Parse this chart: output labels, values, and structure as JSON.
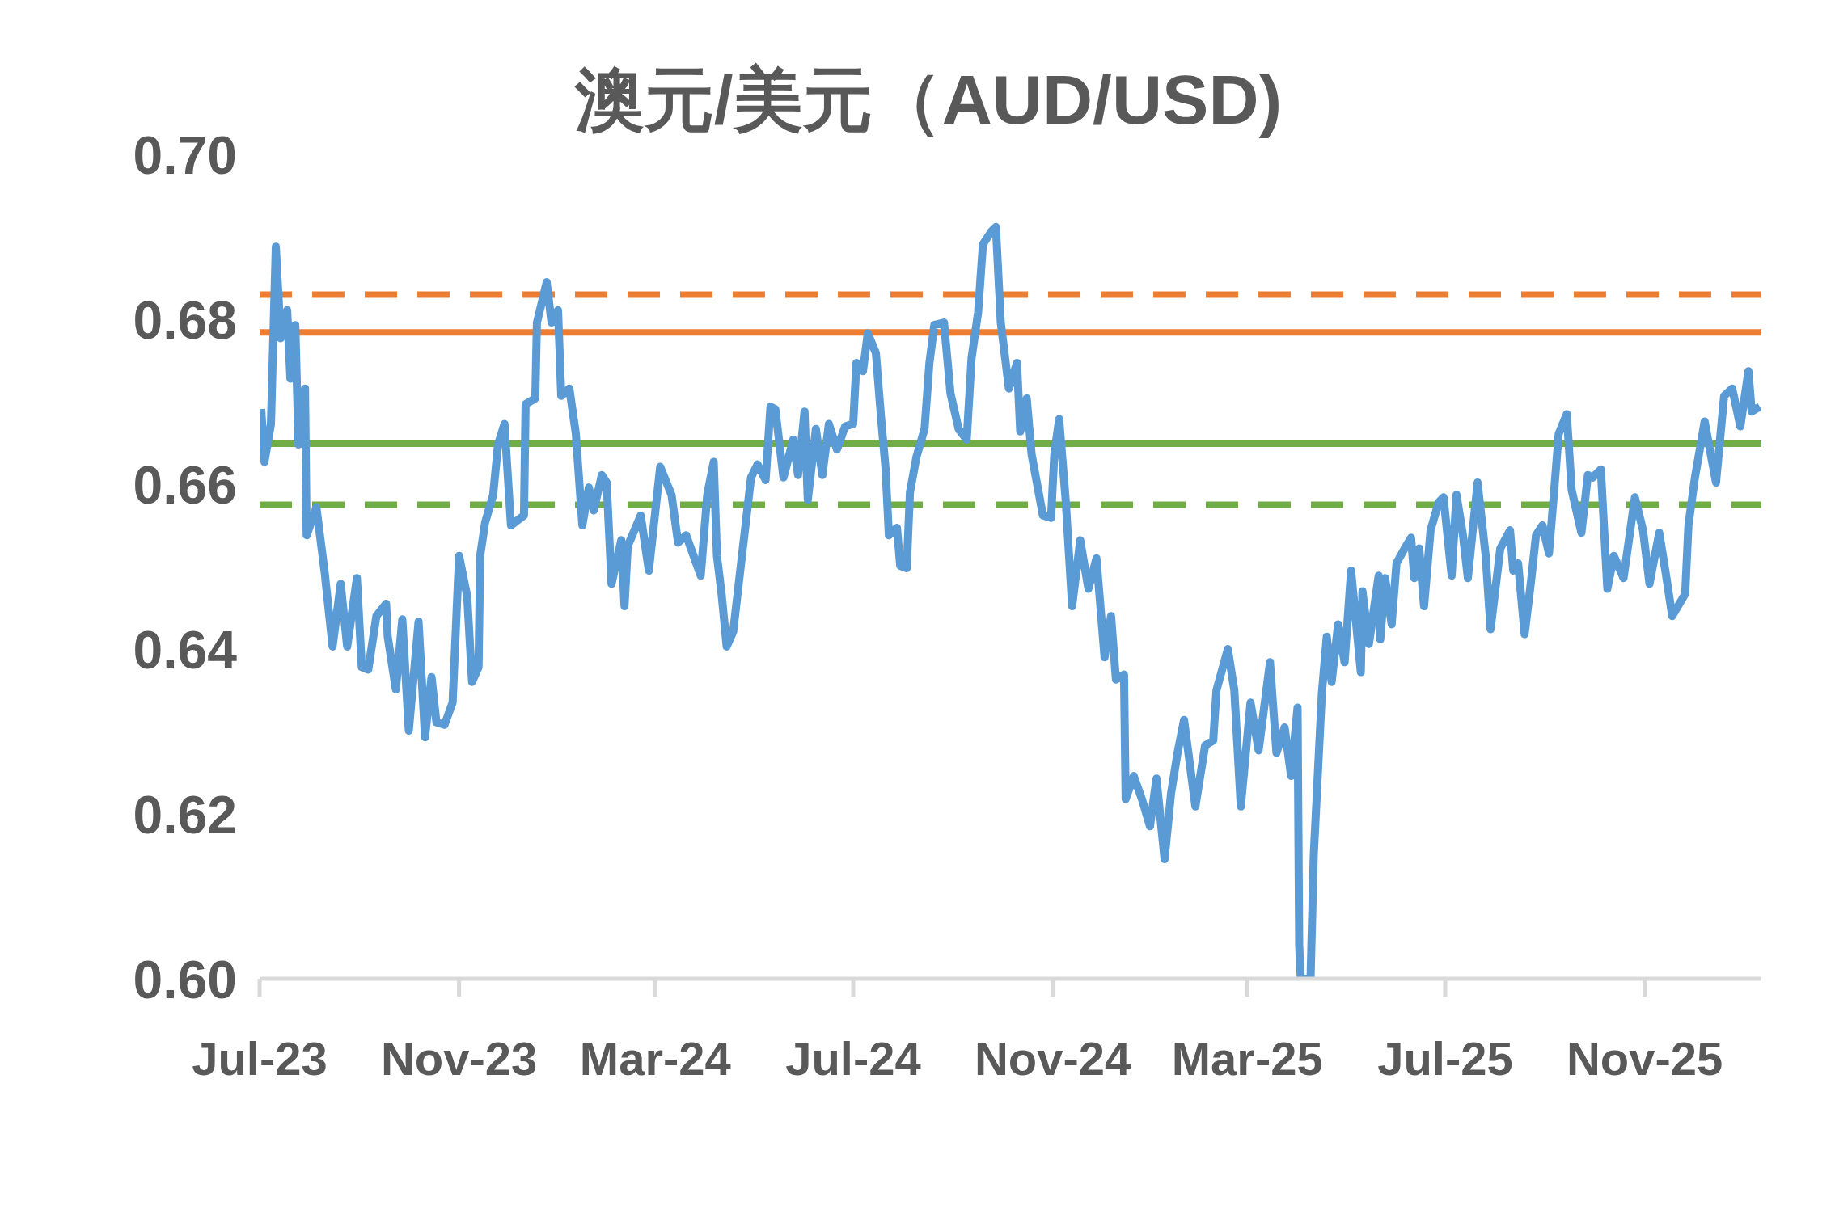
{
  "chart_data": {
    "type": "line",
    "title": "澳元/美元（AUD/USD)",
    "x": [
      "2023-07-02",
      "2023-07-04",
      "2023-07-08",
      "2023-07-11",
      "2023-07-14",
      "2023-07-18",
      "2023-07-20",
      "2023-07-23",
      "2023-07-25",
      "2023-07-29",
      "2023-07-30",
      "2023-08-05",
      "2023-08-10",
      "2023-08-15",
      "2023-08-20",
      "2023-08-24",
      "2023-08-30",
      "2023-09-02",
      "2023-09-06",
      "2023-09-11",
      "2023-09-17",
      "2023-09-18",
      "2023-09-23",
      "2023-09-27",
      "2023-10-01",
      "2023-10-07",
      "2023-10-11",
      "2023-10-15",
      "2023-10-18",
      "2023-10-23",
      "2023-10-28",
      "2023-11-01",
      "2023-11-06",
      "2023-11-09",
      "2023-11-13",
      "2023-11-14",
      "2023-11-17",
      "2023-11-22",
      "2023-11-25",
      "2023-11-29",
      "2023-12-03",
      "2023-12-11",
      "2023-12-12",
      "2023-12-18",
      "2023-12-19",
      "2023-12-25",
      "2023-12-28",
      "2024-01-01",
      "2024-01-03",
      "2024-01-08",
      "2024-01-12",
      "2024-01-16",
      "2024-01-20",
      "2024-01-23",
      "2024-01-28",
      "2024-01-31",
      "2024-02-03",
      "2024-02-09",
      "2024-02-11",
      "2024-02-13",
      "2024-02-21",
      "2024-02-26",
      "2024-03-04",
      "2024-03-11",
      "2024-03-15",
      "2024-03-20",
      "2024-03-29",
      "2024-04-02",
      "2024-04-06",
      "2024-04-08",
      "2024-04-11",
      "2024-04-14",
      "2024-04-18",
      "2024-04-22",
      "2024-04-29",
      "2024-05-03",
      "2024-05-08",
      "2024-05-11",
      "2024-05-14",
      "2024-05-19",
      "2024-05-25",
      "2024-05-28",
      "2024-06-01",
      "2024-06-03",
      "2024-06-08",
      "2024-06-12",
      "2024-06-16",
      "2024-06-21",
      "2024-06-26",
      "2024-07-01",
      "2024-07-03",
      "2024-07-07",
      "2024-07-10",
      "2024-07-15",
      "2024-07-18",
      "2024-07-21",
      "2024-07-23",
      "2024-07-28",
      "2024-07-30",
      "2024-08-03",
      "2024-08-05",
      "2024-08-09",
      "2024-08-14",
      "2024-08-17",
      "2024-08-20",
      "2024-08-26",
      "2024-08-30",
      "2024-09-04",
      "2024-09-09",
      "2024-09-12",
      "2024-09-16",
      "2024-09-19",
      "2024-09-24",
      "2024-09-27",
      "2024-09-30",
      "2024-10-05",
      "2024-10-10",
      "2024-10-12",
      "2024-10-16",
      "2024-10-19",
      "2024-10-26",
      "2024-10-31",
      "2024-11-02",
      "2024-11-05",
      "2024-11-09",
      "2024-11-13",
      "2024-11-18",
      "2024-11-23",
      "2024-11-28",
      "2024-12-03",
      "2024-12-07",
      "2024-12-10",
      "2024-12-15",
      "2024-12-16",
      "2024-12-21",
      "2024-12-26",
      "2024-12-31",
      "2025-01-04",
      "2025-01-09",
      "2025-01-13",
      "2025-01-17",
      "2025-01-21",
      "2025-01-28",
      "2025-02-03",
      "2025-02-08",
      "2025-02-10",
      "2025-02-17",
      "2025-02-21",
      "2025-02-25",
      "2025-03-03",
      "2025-03-08",
      "2025-03-15",
      "2025-03-19",
      "2025-03-24",
      "2025-03-28",
      "2025-04-01",
      "2025-04-02",
      "2025-04-03",
      "2025-04-09",
      "2025-04-11",
      "2025-04-16",
      "2025-04-19",
      "2025-04-22",
      "2025-04-26",
      "2025-04-30",
      "2025-05-04",
      "2025-05-10",
      "2025-05-11",
      "2025-05-15",
      "2025-05-21",
      "2025-05-22",
      "2025-05-25",
      "2025-05-29",
      "2025-06-01",
      "2025-06-06",
      "2025-06-10",
      "2025-06-12",
      "2025-06-15",
      "2025-06-18",
      "2025-06-22",
      "2025-06-27",
      "2025-06-30",
      "2025-07-05",
      "2025-07-08",
      "2025-07-12",
      "2025-07-15",
      "2025-07-21",
      "2025-07-26",
      "2025-07-29",
      "2025-08-04",
      "2025-08-10",
      "2025-08-12",
      "2025-08-15",
      "2025-08-19",
      "2025-08-23",
      "2025-08-26",
      "2025-08-30",
      "2025-09-03",
      "2025-09-06",
      "2025-09-09",
      "2025-09-14",
      "2025-09-17",
      "2025-09-23",
      "2025-09-27",
      "2025-09-30",
      "2025-10-05",
      "2025-10-09",
      "2025-10-13",
      "2025-10-19",
      "2025-10-26",
      "2025-10-31",
      "2025-11-04",
      "2025-11-10",
      "2025-11-14",
      "2025-11-18",
      "2025-11-26",
      "2025-11-28",
      "2025-12-02",
      "2025-12-08",
      "2025-12-15",
      "2025-12-20",
      "2025-12-25",
      "2025-12-30",
      "2026-01-04",
      "2026-01-06",
      "2026-01-11"
    ],
    "series": [
      {
        "color": "#5b9bd5",
        "values": [
          0.6691,
          0.6627,
          0.6673,
          0.6888,
          0.6777,
          0.6811,
          0.6728,
          0.6793,
          0.6648,
          0.6716,
          0.6538,
          0.6572,
          0.6495,
          0.6403,
          0.6479,
          0.6403,
          0.6486,
          0.6378,
          0.6375,
          0.644,
          0.6455,
          0.6415,
          0.6351,
          0.6436,
          0.6301,
          0.6433,
          0.6293,
          0.6366,
          0.6311,
          0.6308,
          0.6335,
          0.6513,
          0.6464,
          0.636,
          0.6378,
          0.6513,
          0.6553,
          0.6587,
          0.6648,
          0.6673,
          0.655,
          0.6562,
          0.6697,
          0.6704,
          0.6796,
          0.6845,
          0.6796,
          0.6811,
          0.6707,
          0.6716,
          0.6661,
          0.655,
          0.6596,
          0.6568,
          0.6611,
          0.6602,
          0.6479,
          0.6532,
          0.6452,
          0.6525,
          0.6562,
          0.6495,
          0.6621,
          0.6587,
          0.6529,
          0.6538,
          0.6489,
          0.6587,
          0.6627,
          0.6513,
          0.6464,
          0.6403,
          0.6421,
          0.6489,
          0.6608,
          0.6624,
          0.6605,
          0.6694,
          0.6691,
          0.6608,
          0.6654,
          0.6611,
          0.6688,
          0.6581,
          0.6667,
          0.6611,
          0.6673,
          0.6642,
          0.667,
          0.6673,
          0.6747,
          0.6737,
          0.6783,
          0.6759,
          0.6685,
          0.6618,
          0.6538,
          0.6547,
          0.6501,
          0.6498,
          0.659,
          0.6633,
          0.6667,
          0.6747,
          0.6793,
          0.6796,
          0.671,
          0.6667,
          0.6654,
          0.6753,
          0.6808,
          0.6891,
          0.6906,
          0.6912,
          0.6796,
          0.6716,
          0.6747,
          0.6664,
          0.6704,
          0.6636,
          0.6562,
          0.6559,
          0.6636,
          0.6679,
          0.6581,
          0.6452,
          0.6532,
          0.6473,
          0.651,
          0.639,
          0.644,
          0.6363,
          0.6369,
          0.6218,
          0.6246,
          0.6218,
          0.6185,
          0.6243,
          0.6145,
          0.6225,
          0.6274,
          0.6314,
          0.6209,
          0.6283,
          0.6289,
          0.635,
          0.64,
          0.635,
          0.6209,
          0.6335,
          0.6277,
          0.6384,
          0.6274,
          0.6305,
          0.6246,
          0.6329,
          0.604,
          0.6,
          0.6,
          0.6151,
          0.6347,
          0.6415,
          0.636,
          0.643,
          0.6384,
          0.6495,
          0.6372,
          0.647,
          0.6406,
          0.6489,
          0.6412,
          0.6486,
          0.643,
          0.6504,
          0.6522,
          0.6535,
          0.6486,
          0.6522,
          0.6452,
          0.6544,
          0.6578,
          0.6584,
          0.6489,
          0.6587,
          0.6538,
          0.6486,
          0.6602,
          0.6513,
          0.6424,
          0.6522,
          0.6544,
          0.6495,
          0.6504,
          0.6418,
          0.6483,
          0.6538,
          0.655,
          0.6516,
          0.6587,
          0.6661,
          0.6685,
          0.6593,
          0.6541,
          0.6611,
          0.6608,
          0.6618,
          0.6473,
          0.6513,
          0.6486,
          0.6584,
          0.6544,
          0.6479,
          0.6541,
          0.6492,
          0.644,
          0.6467,
          0.655,
          0.6608,
          0.6676,
          0.6602,
          0.6707,
          0.6716,
          0.667,
          0.6737,
          0.6688,
          0.6694
        ]
      }
    ],
    "xlim": [
      "2023-07-01",
      "2026-01-12"
    ],
    "xticks": [
      {
        "value": "2023-07-01",
        "label": "Jul-23"
      },
      {
        "value": "2023-11-01",
        "label": "Nov-23"
      },
      {
        "value": "2024-03-01",
        "label": "Mar-24"
      },
      {
        "value": "2024-07-01",
        "label": "Jul-24"
      },
      {
        "value": "2024-11-01",
        "label": "Nov-24"
      },
      {
        "value": "2025-03-01",
        "label": "Mar-25"
      },
      {
        "value": "2025-07-01",
        "label": "Jul-25"
      },
      {
        "value": "2025-11-01",
        "label": "Nov-25"
      }
    ],
    "ylim": [
      0.6,
      0.7
    ],
    "yticks": [
      {
        "value": 0.6,
        "label": "0.60"
      },
      {
        "value": 0.62,
        "label": "0.62"
      },
      {
        "value": 0.64,
        "label": "0.64"
      },
      {
        "value": 0.66,
        "label": "0.66"
      },
      {
        "value": 0.68,
        "label": "0.68"
      },
      {
        "value": 0.7,
        "label": "0.70"
      }
    ],
    "ref_lines": [
      {
        "axis": "y",
        "value": 0.683,
        "color": "#ed7d31",
        "line_style": "dashed"
      },
      {
        "axis": "y",
        "value": 0.6784,
        "color": "#ed7d31",
        "line_style": "solid"
      },
      {
        "axis": "y",
        "value": 0.6649,
        "color": "#70ad47",
        "line_style": "solid"
      },
      {
        "axis": "y",
        "value": 0.6575,
        "color": "#70ad47",
        "line_style": "dashed"
      }
    ],
    "grid": false,
    "legend": false,
    "marker": "none",
    "line_style": "solid"
  }
}
